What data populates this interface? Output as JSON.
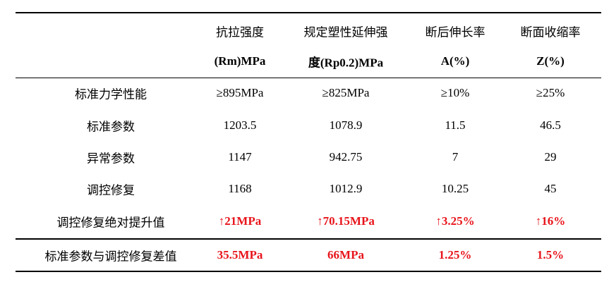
{
  "table": {
    "header": [
      [],
      [
        "抗拉强度",
        "(Rm)MPa"
      ],
      [
        "规定塑性延伸强",
        "度(Rp0.2)MPa"
      ],
      [
        "断后伸长率",
        "A(%)"
      ],
      [
        "断面收缩率",
        "Z(%)"
      ]
    ],
    "rows": [
      [
        "标准力学性能",
        "≥895MPa",
        "≥825MPa",
        "≥10%",
        "≥25%"
      ],
      [
        "标准参数",
        "1203.5",
        "1078.9",
        "11.5",
        "46.5"
      ],
      [
        "异常参数",
        "1147",
        "942.75",
        "7",
        "29"
      ],
      [
        "调控修复",
        "1168",
        "1012.9",
        "10.25",
        "45"
      ],
      [
        "调控修复绝对提升值",
        "↑21MPa",
        "↑70.15MPa",
        "↑3.25%",
        "↑16%"
      ],
      [
        "标准参数与调控修复差值",
        "35.5MPa",
        "66MPa",
        "1.25%",
        "1.5%"
      ]
    ]
  }
}
